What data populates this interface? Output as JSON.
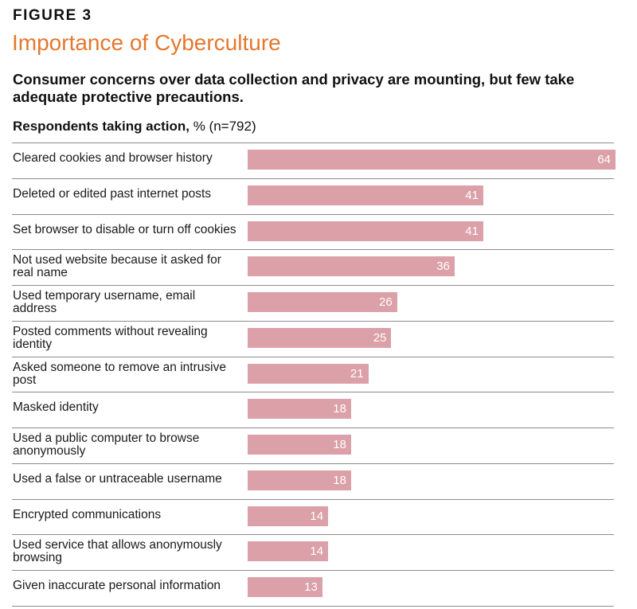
{
  "figure_label": "FIGURE 3",
  "title": "Importance of Cyberculture",
  "subtitle": "Consumer concerns over data collection and privacy are mounting, but few take adequate protective precautions.",
  "respondents_bold": "Respondents taking action,",
  "respondents_rest": " % (n=792)",
  "colors": {
    "title": "#e4782e",
    "bar": "#dba0a8",
    "bar_value": "#ffffff"
  },
  "chart_data": {
    "type": "bar",
    "orientation": "horizontal",
    "title": "Importance of Cyberculture",
    "ylabel": "Respondents taking action, % (n=792)",
    "xlim": [
      0,
      64
    ],
    "grid": false,
    "categories": [
      "Cleared cookies and browser history",
      "Deleted or edited past internet posts",
      "Set browser to disable or turn off cookies",
      "Not used website because it asked for real name",
      "Used temporary username, email address",
      "Posted comments without revealing identity",
      "Asked someone to remove an intrusive post",
      "Masked identity",
      "Used a public computer to browse anonymously",
      "Used a false or untraceable username",
      "Encrypted communications",
      "Used service that allows anonymously browsing",
      "Given inaccurate personal information"
    ],
    "values": [
      64,
      41,
      41,
      36,
      26,
      25,
      21,
      18,
      18,
      18,
      14,
      14,
      13
    ],
    "labels": [
      "64",
      "41",
      "41",
      "36",
      "26",
      "25",
      "21",
      "18",
      "18",
      "18",
      "14",
      "14",
      "13"
    ]
  }
}
